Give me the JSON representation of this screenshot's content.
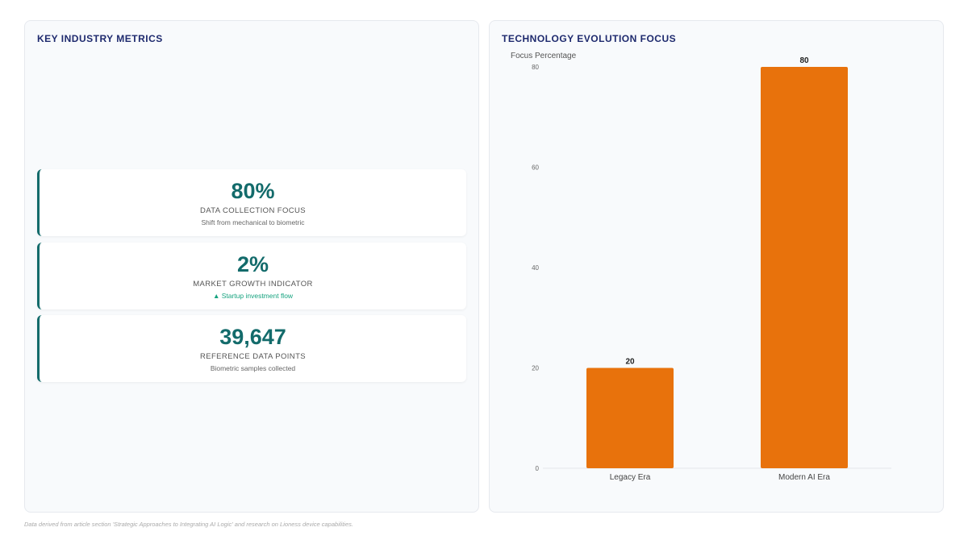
{
  "left_panel": {
    "title": "KEY INDUSTRY METRICS",
    "metrics": [
      {
        "value": "80%",
        "label": "DATA COLLECTION FOCUS",
        "sub": "Shift from mechanical to biometric"
      },
      {
        "value": "2%",
        "label": "MARKET GROWTH INDICATOR",
        "sub": "▲ Startup investment flow"
      },
      {
        "value": "39,647",
        "label": "REFERENCE DATA POINTS",
        "sub": "Biometric samples collected"
      }
    ]
  },
  "right_panel": {
    "title": "TECHNOLOGY EVOLUTION FOCUS"
  },
  "chart_data": {
    "type": "bar",
    "categories": [
      "Legacy Era",
      "Modern AI Era"
    ],
    "values": [
      20,
      80
    ],
    "ylabel": "Focus Percentage",
    "yticks": [
      0,
      20,
      40,
      60,
      80
    ],
    "ylim": [
      0,
      80
    ],
    "bar_color": "#e8720c",
    "grid": false,
    "legend": false
  },
  "footnote": "Data derived from article section 'Strategic Approaches to Integrating AI Logic' and research on Lioness device capabilities.",
  "colors": {
    "accent": "#136b6b",
    "title": "#1e2a6e",
    "positive": "#16a37f"
  }
}
